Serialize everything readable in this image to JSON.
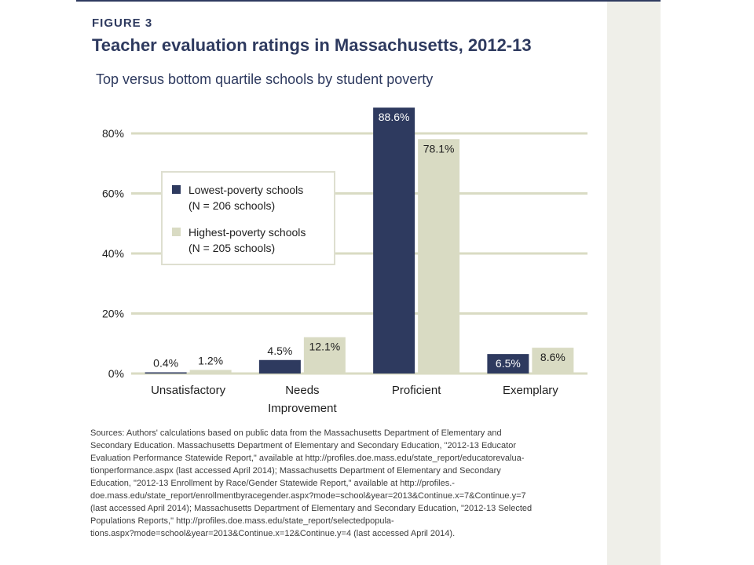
{
  "figure": {
    "label": "FIGURE 3",
    "title": "Teacher evaluation ratings in Massachusetts, 2012-13",
    "subtitle": "Top versus bottom quartile schools by student poverty"
  },
  "legend": [
    {
      "name": "Lowest-poverty schools",
      "note": "(N = 206 schools)",
      "color": "#2e3a5f"
    },
    {
      "name": "Highest-poverty schools",
      "note": "(N = 205 schools)",
      "color": "#d9dbc3"
    }
  ],
  "chart_data": {
    "type": "bar",
    "title": "Teacher evaluation ratings in Massachusetts, 2012-13",
    "subtitle": "Top versus bottom quartile schools by student poverty",
    "xlabel": "",
    "ylabel": "",
    "ylim": [
      0,
      80
    ],
    "yticks": [
      0,
      20,
      40,
      60,
      80
    ],
    "ytick_labels": [
      "0%",
      "20%",
      "40%",
      "60%",
      "80%"
    ],
    "categories": [
      [
        "Unsatisfactory"
      ],
      [
        "Needs",
        "Improvement"
      ],
      [
        "Proficient"
      ],
      [
        "Exemplary"
      ]
    ],
    "series": [
      {
        "name": "Lowest-poverty schools (N = 206 schools)",
        "color": "#2e3a5f",
        "values": [
          0.4,
          4.5,
          88.6,
          6.5
        ],
        "labels": [
          "0.4%",
          "4.5%",
          "88.6%",
          "6.5%"
        ]
      },
      {
        "name": "Highest-poverty schools (N = 205 schools)",
        "color": "#d9dbc3",
        "values": [
          1.2,
          12.1,
          78.1,
          8.6
        ],
        "labels": [
          "1.2%",
          "12.1%",
          "78.1%",
          "8.6%"
        ]
      }
    ],
    "grid": true,
    "legend_position": "upper-left",
    "gridline_color": "#d9dbc3",
    "label_color_inside_dark": "#ffffff",
    "label_color_default": "#1e1e1e"
  },
  "sources": [
    "Sources: Authors' calculations based on public data from the Massachusetts Department of Elementary and",
    "Secondary Education. Massachusetts Department of Elementary and Secondary Education, \"2012-13 Educator",
    "Evaluation Performance Statewide Report,\" available at http://profiles.doe.mass.edu/state_report/educatorevalua-",
    "tionperformance.aspx (last accessed April 2014); Massachusetts Department of Elementary and Secondary",
    "Education, \"2012-13 Enrollment by Race/Gender Statewide Report,\" available at http://profiles.-",
    "doe.mass.edu/state_report/enrollmentbyracegender.aspx?mode=school&year=2013&Continue.x=7&Continue.y=7",
    "(last accessed April 2014); Massachusetts Department of Elementary and Secondary Education, \"2012-13 Selected",
    "Populations Reports,\" http://profiles.doe.mass.edu/state_report/selectedpopula-",
    "tions.aspx?mode=school&year=2013&Continue.x=12&Continue.y=4 (last accessed April 2014)."
  ]
}
